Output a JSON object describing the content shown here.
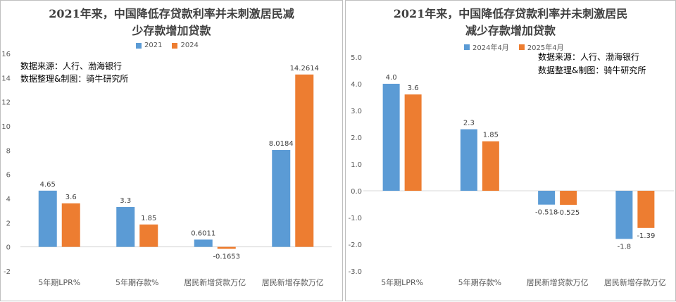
{
  "colors": {
    "series1": "#5b9bd5",
    "series2": "#ed7d31",
    "axis": "#d9d9d9",
    "text": "#595959"
  },
  "charts": [
    {
      "title_line1": "2021年来，中国降低存贷款利率并未刺激居民减",
      "title_line2": "少存款增加贷款",
      "note_line1": "数据来源：人行、渤海银行",
      "note_line2": "数据整理&制图：骑牛研究所"
    },
    {
      "title_line1": "2021年来，中国降低存贷款利率并未刺激居民",
      "title_line2": "减少存款增加贷款",
      "note_line1": "数据来源：人行、渤海银行",
      "note_line2": "数据整理&制图：骑牛研究所"
    }
  ],
  "chart_data": [
    {
      "type": "bar",
      "title": "2021年来，中国降低存贷款利率并未刺激居民减少存款增加贷款",
      "categories": [
        "5年期LPR%",
        "5年期存款%",
        "居民新增贷款万亿",
        "居民新增存款万亿"
      ],
      "series": [
        {
          "name": "2021",
          "values": [
            4.65,
            3.3,
            0.6011,
            8.0184
          ],
          "labels": [
            "4.65",
            "3.3",
            "0.6011",
            "8.0184"
          ]
        },
        {
          "name": "2024",
          "values": [
            3.6,
            1.85,
            -0.1653,
            14.2614
          ],
          "labels": [
            "3.6",
            "1.85",
            "-0.1653",
            "14.2614"
          ]
        }
      ],
      "ylim": [
        -2,
        16
      ],
      "yticks": [
        -2,
        0,
        2,
        4,
        6,
        8,
        10,
        12,
        14,
        16
      ],
      "ytick_labels": [
        "-2",
        "0",
        "2",
        "4",
        "6",
        "8",
        "10",
        "12",
        "14",
        "16"
      ],
      "legend_position": "top",
      "grid": false
    },
    {
      "type": "bar",
      "title": "2021年来，中国降低存贷款利率并未刺激居民减少存款增加贷款",
      "categories": [
        "5年期LPR%",
        "5年期存款%",
        "居民新增贷款万亿",
        "居民新增存款万亿"
      ],
      "series": [
        {
          "name": "2024年4月",
          "values": [
            4.0,
            2.3,
            -0.518,
            -1.8
          ],
          "labels": [
            "4.0",
            "2.3",
            "-0.518",
            "-1.8"
          ]
        },
        {
          "name": "2025年4月",
          "values": [
            3.6,
            1.85,
            -0.525,
            -1.39
          ],
          "labels": [
            "3.6",
            "1.85",
            "-0.525",
            "-1.39"
          ]
        }
      ],
      "ylim": [
        -3,
        5
      ],
      "yticks": [
        -3,
        -2,
        -1,
        0,
        1,
        2,
        3,
        4,
        5
      ],
      "ytick_labels": [
        "-3.0",
        "-2.0",
        "-1.0",
        "0.0",
        "1.0",
        "2.0",
        "3.0",
        "4.0",
        "5.0"
      ],
      "legend_position": "top",
      "grid": false
    }
  ]
}
